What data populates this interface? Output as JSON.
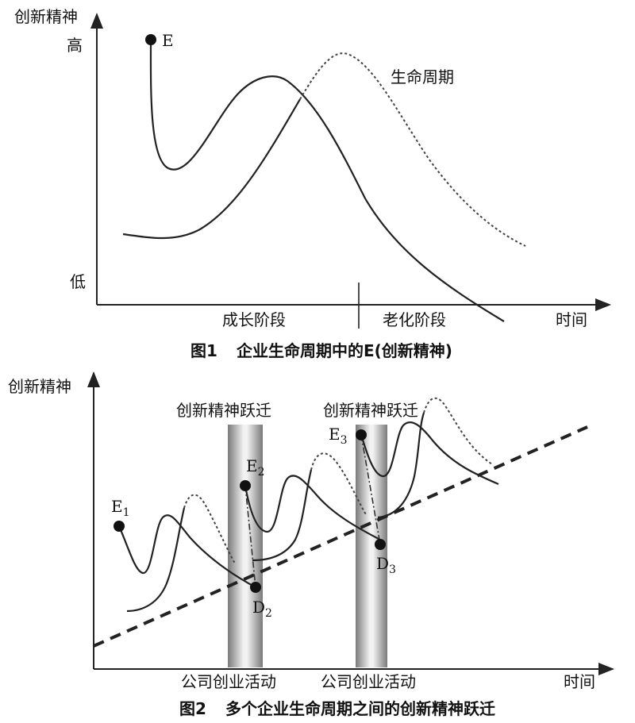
{
  "figure1": {
    "y_axis_label": "创新精神",
    "y_high": "高",
    "y_low": "低",
    "point_e": "E",
    "lifecycle_label": "生命周期",
    "phase_growth": "成长阶段",
    "phase_aging": "老化阶段",
    "x_axis_label": "时间",
    "caption_num": "图1",
    "caption_text": "企业生命周期中的E(创新精神)"
  },
  "figure2": {
    "y_axis_label": "创新精神",
    "leap_label_1": "创新精神跃迁",
    "leap_label_2": "创新精神跃迁",
    "e1": "E",
    "e1_sub": "1",
    "e2": "E",
    "e2_sub": "2",
    "e3": "E",
    "e3_sub": "3",
    "d2": "D",
    "d2_sub": "2",
    "d3": "D",
    "d3_sub": "3",
    "activity_label_1": "公司创业活动",
    "activity_label_2": "公司创业活动",
    "x_axis_label": "时间",
    "caption_num": "图2",
    "caption_text": "多个企业生命周期之间的创新精神跃迁"
  }
}
